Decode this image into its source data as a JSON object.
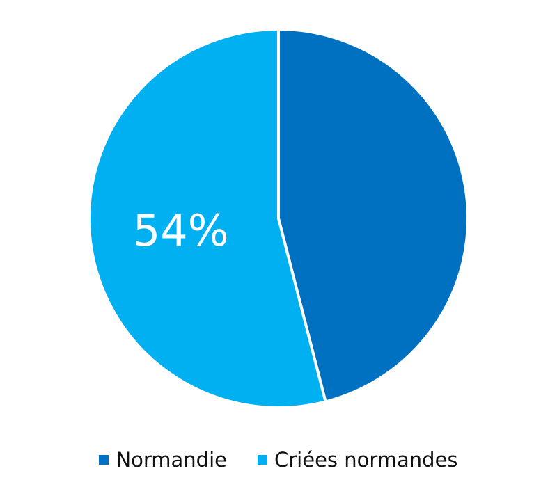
{
  "chart_data": {
    "type": "pie",
    "title": "",
    "slices": [
      {
        "name": "Normandie",
        "value": 46,
        "color": "#0070C0",
        "label": ""
      },
      {
        "name": "Criées normandes",
        "value": 54,
        "color": "#00B0F0",
        "label": "54%"
      }
    ],
    "start_angle_deg": 0,
    "direction": "clockwise",
    "legend": {
      "position": "bottom",
      "items": [
        {
          "label": "Normandie",
          "color": "#0070C0"
        },
        {
          "label": "Criées normandes",
          "color": "#00B0F0"
        }
      ]
    }
  }
}
